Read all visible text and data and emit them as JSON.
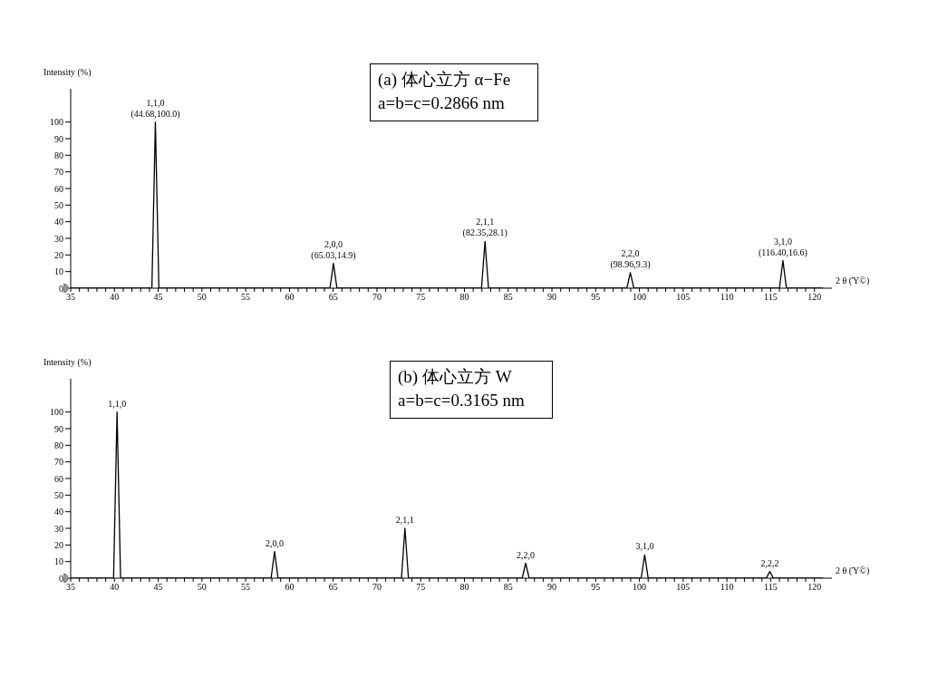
{
  "chart_data": [
    {
      "type": "line",
      "xlabel": "2 θ (Ύ©)",
      "ylabel": "Intensity (%)",
      "series": [
        {
          "color": "#000000",
          "x": [
            35,
            44.28,
            44.68,
            45.08,
            64.63,
            65.03,
            65.43,
            81.95,
            82.35,
            82.75,
            98.56,
            98.96,
            99.36,
            116.0,
            116.4,
            116.8,
            121
          ],
          "values": [
            0,
            0,
            100,
            0,
            0,
            14.9,
            0,
            0,
            28.1,
            0,
            0,
            9.3,
            0,
            0,
            16.6,
            0,
            0
          ]
        }
      ],
      "xlim": [
        35,
        122
      ],
      "ylim": [
        0,
        120
      ],
      "xticks": [
        35,
        {
          "value": 36,
          "label": null
        },
        {
          "value": 37,
          "label": null
        },
        {
          "value": 38,
          "label": null
        },
        {
          "value": 39,
          "label": null
        },
        40,
        {
          "value": 41,
          "label": null
        },
        {
          "value": 42,
          "label": null
        },
        {
          "value": 43,
          "label": null
        },
        {
          "value": 44,
          "label": null
        },
        45,
        {
          "value": 46,
          "label": null
        },
        {
          "value": 47,
          "label": null
        },
        {
          "value": 48,
          "label": null
        },
        {
          "value": 49,
          "label": null
        },
        50,
        {
          "value": 51,
          "label": null
        },
        {
          "value": 52,
          "label": null
        },
        {
          "value": 53,
          "label": null
        },
        {
          "value": 54,
          "label": null
        },
        55,
        {
          "value": 56,
          "label": null
        },
        {
          "value": 57,
          "label": null
        },
        {
          "value": 58,
          "label": null
        },
        {
          "value": 59,
          "label": null
        },
        60,
        {
          "value": 61,
          "label": null
        },
        {
          "value": 62,
          "label": null
        },
        {
          "value": 63,
          "label": null
        },
        {
          "value": 64,
          "label": null
        },
        65,
        {
          "value": 66,
          "label": null
        },
        {
          "value": 67,
          "label": null
        },
        {
          "value": 68,
          "label": null
        },
        {
          "value": 69,
          "label": null
        },
        70,
        {
          "value": 71,
          "label": null
        },
        {
          "value": 72,
          "label": null
        },
        {
          "value": 73,
          "label": null
        },
        {
          "value": 74,
          "label": null
        },
        75,
        {
          "value": 76,
          "label": null
        },
        {
          "value": 77,
          "label": null
        },
        {
          "value": 78,
          "label": null
        },
        {
          "value": 79,
          "label": null
        },
        80,
        {
          "value": 81,
          "label": null
        },
        {
          "value": 82,
          "label": null
        },
        {
          "value": 83,
          "label": null
        },
        {
          "value": 84,
          "label": null
        },
        85,
        {
          "value": 86,
          "label": null
        },
        {
          "value": 87,
          "label": null
        },
        {
          "value": 88,
          "label": null
        },
        {
          "value": 89,
          "label": null
        },
        90,
        {
          "value": 91,
          "label": null
        },
        {
          "value": 92,
          "label": null
        },
        {
          "value": 93,
          "label": null
        },
        {
          "value": 94,
          "label": null
        },
        95,
        {
          "value": 96,
          "label": null
        },
        {
          "value": 97,
          "label": null
        },
        {
          "value": 98,
          "label": null
        },
        {
          "value": 99,
          "label": null
        },
        100,
        {
          "value": 101,
          "label": null
        },
        {
          "value": 102,
          "label": null
        },
        {
          "value": 103,
          "label": null
        },
        {
          "value": 104,
          "label": null
        },
        105,
        {
          "value": 106,
          "label": null
        },
        {
          "value": 107,
          "label": null
        },
        {
          "value": 108,
          "label": null
        },
        {
          "value": 109,
          "label": null
        },
        110,
        {
          "value": 111,
          "label": null
        },
        {
          "value": 112,
          "label": null
        },
        {
          "value": 113,
          "label": null
        },
        {
          "value": 114,
          "label": null
        },
        115,
        {
          "value": 116,
          "label": null
        },
        {
          "value": 117,
          "label": null
        },
        {
          "value": 118,
          "label": null
        },
        {
          "value": 119,
          "label": null
        },
        120
      ],
      "yticks": [
        0,
        10,
        20,
        30,
        40,
        50,
        60,
        70,
        80,
        90,
        100
      ],
      "annotations": [
        "(a) 体心立方 α−Fe",
        "a=b=c=0.2866 nm",
        {
          "text": "1,1,0\n(44.68,100.0)",
          "x": 44.68,
          "y": 100
        },
        {
          "text": "2,0,0\n(65.03,14.9)",
          "x": 65.03,
          "y": 14.9
        },
        {
          "text": "2,1,1\n(82.35,28.1)",
          "x": 82.35,
          "y": 28.1
        },
        {
          "text": "2,2,0\n(98.96,9.3)",
          "x": 98.96,
          "y": 9.3
        },
        {
          "text": "3,1,0\n(116.40,16.6)",
          "x": 116.4,
          "y": 16.6
        }
      ]
    },
    {
      "type": "line",
      "xlabel": "2 θ (Ύ©)",
      "ylabel": "Intensity (%)",
      "series": [
        {
          "color": "#000000",
          "x": [
            35,
            39.9,
            40.3,
            40.7,
            57.9,
            58.3,
            58.7,
            72.8,
            73.2,
            73.6,
            86.6,
            87.0,
            87.4,
            100.2,
            100.6,
            101.0,
            114.5,
            114.9,
            115.3,
            121
          ],
          "values": [
            0,
            0,
            100,
            0,
            0,
            16,
            0,
            0,
            30,
            0,
            0,
            9,
            0,
            0,
            14,
            0,
            0,
            4,
            0,
            0
          ]
        }
      ],
      "xlim": [
        35,
        122
      ],
      "ylim": [
        0,
        120
      ],
      "xticks": [
        35,
        {
          "value": 36,
          "label": null
        },
        {
          "value": 37,
          "label": null
        },
        {
          "value": 38,
          "label": null
        },
        {
          "value": 39,
          "label": null
        },
        40,
        {
          "value": 41,
          "label": null
        },
        {
          "value": 42,
          "label": null
        },
        {
          "value": 43,
          "label": null
        },
        {
          "value": 44,
          "label": null
        },
        45,
        {
          "value": 46,
          "label": null
        },
        {
          "value": 47,
          "label": null
        },
        {
          "value": 48,
          "label": null
        },
        {
          "value": 49,
          "label": null
        },
        50,
        {
          "value": 51,
          "label": null
        },
        {
          "value": 52,
          "label": null
        },
        {
          "value": 53,
          "label": null
        },
        {
          "value": 54,
          "label": null
        },
        55,
        {
          "value": 56,
          "label": null
        },
        {
          "value": 57,
          "label": null
        },
        {
          "value": 58,
          "label": null
        },
        {
          "value": 59,
          "label": null
        },
        60,
        {
          "value": 61,
          "label": null
        },
        {
          "value": 62,
          "label": null
        },
        {
          "value": 63,
          "label": null
        },
        {
          "value": 64,
          "label": null
        },
        65,
        {
          "value": 66,
          "label": null
        },
        {
          "value": 67,
          "label": null
        },
        {
          "value": 68,
          "label": null
        },
        {
          "value": 69,
          "label": null
        },
        70,
        {
          "value": 71,
          "label": null
        },
        {
          "value": 72,
          "label": null
        },
        {
          "value": 73,
          "label": null
        },
        {
          "value": 74,
          "label": null
        },
        75,
        {
          "value": 76,
          "label": null
        },
        {
          "value": 77,
          "label": null
        },
        {
          "value": 78,
          "label": null
        },
        {
          "value": 79,
          "label": null
        },
        80,
        {
          "value": 81,
          "label": null
        },
        {
          "value": 82,
          "label": null
        },
        {
          "value": 83,
          "label": null
        },
        {
          "value": 84,
          "label": null
        },
        85,
        {
          "value": 86,
          "label": null
        },
        {
          "value": 87,
          "label": null
        },
        {
          "value": 88,
          "label": null
        },
        {
          "value": 89,
          "label": null
        },
        90,
        {
          "value": 91,
          "label": null
        },
        {
          "value": 92,
          "label": null
        },
        {
          "value": 93,
          "label": null
        },
        {
          "value": 94,
          "label": null
        },
        95,
        {
          "value": 96,
          "label": null
        },
        {
          "value": 97,
          "label": null
        },
        {
          "value": 98,
          "label": null
        },
        {
          "value": 99,
          "label": null
        },
        100,
        {
          "value": 101,
          "label": null
        },
        {
          "value": 102,
          "label": null
        },
        {
          "value": 103,
          "label": null
        },
        {
          "value": 104,
          "label": null
        },
        105,
        {
          "value": 106,
          "label": null
        },
        {
          "value": 107,
          "label": null
        },
        {
          "value": 108,
          "label": null
        },
        {
          "value": 109,
          "label": null
        },
        110,
        {
          "value": 111,
          "label": null
        },
        {
          "value": 112,
          "label": null
        },
        {
          "value": 113,
          "label": null
        },
        {
          "value": 114,
          "label": null
        },
        115,
        {
          "value": 116,
          "label": null
        },
        {
          "value": 117,
          "label": null
        },
        {
          "value": 118,
          "label": null
        },
        {
          "value": 119,
          "label": null
        },
        120
      ],
      "yticks": [
        0,
        10,
        20,
        30,
        40,
        50,
        60,
        70,
        80,
        90,
        100
      ],
      "annotations": [
        "(b) 体心立方 W",
        "a=b=c=0.3165 nm",
        {
          "text": "1,1,0",
          "x": 40.3,
          "y": 100
        },
        {
          "text": "2,0,0",
          "x": 58.3,
          "y": 16
        },
        {
          "text": "2,1,1",
          "x": 73.2,
          "y": 30
        },
        {
          "text": "2,2,0",
          "x": 87.0,
          "y": 9
        },
        {
          "text": "3,1,0",
          "x": 100.6,
          "y": 14
        },
        {
          "text": "2,2,2",
          "x": 114.9,
          "y": 4
        }
      ]
    }
  ]
}
